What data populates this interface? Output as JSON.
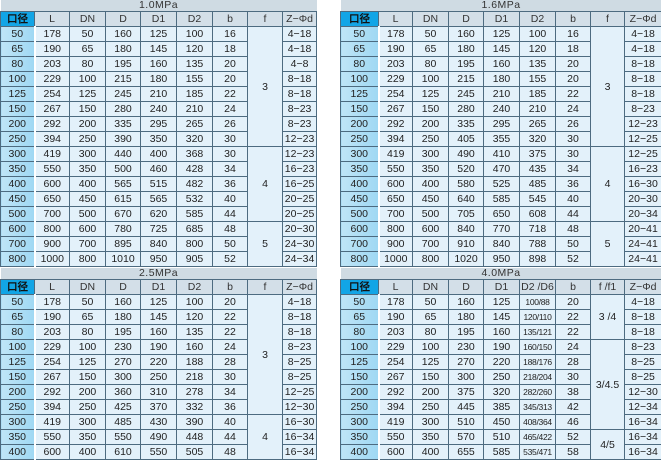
{
  "colors": {
    "header_first": "#12a5e6",
    "first_col": "#a9dcf3",
    "body": "#e3f1fa",
    "title_bar": "#cfdbe3",
    "border": "#4d6b80"
  },
  "tables": [
    {
      "title": "1.0MPa",
      "headers": [
        "口径",
        "L",
        "DN",
        "D",
        "D1",
        "D2",
        "b",
        "f",
        "Z−Φd"
      ],
      "rows": [
        [
          "50",
          "178",
          "50",
          "160",
          "125",
          "100",
          "16",
          "4−18"
        ],
        [
          "65",
          "190",
          "65",
          "180",
          "145",
          "120",
          "18",
          "4−18"
        ],
        [
          "80",
          "203",
          "80",
          "195",
          "160",
          "135",
          "20",
          "4−8"
        ],
        [
          "100",
          "229",
          "100",
          "215",
          "180",
          "155",
          "20",
          "8−18"
        ],
        [
          "125",
          "254",
          "125",
          "245",
          "210",
          "185",
          "22",
          "8−18"
        ],
        [
          "150",
          "267",
          "150",
          "280",
          "240",
          "210",
          "24",
          "8−23"
        ],
        [
          "200",
          "292",
          "200",
          "335",
          "295",
          "265",
          "26",
          "8−23"
        ],
        [
          "250",
          "394",
          "250",
          "390",
          "350",
          "320",
          "30",
          "12−23"
        ],
        [
          "300",
          "419",
          "300",
          "440",
          "400",
          "368",
          "30",
          "12−23"
        ],
        [
          "350",
          "550",
          "350",
          "500",
          "460",
          "428",
          "34",
          "16−23"
        ],
        [
          "400",
          "600",
          "400",
          "565",
          "515",
          "482",
          "36",
          "16−25"
        ],
        [
          "450",
          "650",
          "450",
          "615",
          "565",
          "532",
          "40",
          "20−25"
        ],
        [
          "500",
          "700",
          "500",
          "670",
          "620",
          "585",
          "44",
          "20−25"
        ],
        [
          "600",
          "800",
          "600",
          "780",
          "725",
          "685",
          "48",
          "20−30"
        ],
        [
          "700",
          "900",
          "700",
          "895",
          "840",
          "800",
          "50",
          "24−30"
        ],
        [
          "800",
          "1000",
          "800",
          "1010",
          "950",
          "905",
          "52",
          "24−34"
        ]
      ],
      "f_groups": [
        {
          "value": "3",
          "rows": 8
        },
        {
          "value": "4",
          "rows": 5
        },
        {
          "value": "5",
          "rows": 3
        }
      ]
    },
    {
      "title": "1.6MPa",
      "headers": [
        "口径",
        "L",
        "DN",
        "D",
        "D1",
        "D2",
        "b",
        "f",
        "Z−Φd"
      ],
      "rows": [
        [
          "50",
          "178",
          "50",
          "160",
          "125",
          "100",
          "16",
          "4−18"
        ],
        [
          "65",
          "190",
          "65",
          "180",
          "145",
          "120",
          "18",
          "4−18"
        ],
        [
          "80",
          "203",
          "80",
          "195",
          "160",
          "135",
          "20",
          "8−18"
        ],
        [
          "100",
          "229",
          "100",
          "215",
          "180",
          "155",
          "20",
          "8−18"
        ],
        [
          "125",
          "254",
          "125",
          "245",
          "210",
          "185",
          "22",
          "8−18"
        ],
        [
          "150",
          "267",
          "150",
          "280",
          "240",
          "210",
          "24",
          "8−23"
        ],
        [
          "200",
          "292",
          "200",
          "335",
          "295",
          "265",
          "26",
          "12−23"
        ],
        [
          "250",
          "394",
          "250",
          "405",
          "355",
          "320",
          "30",
          "12−25"
        ],
        [
          "300",
          "419",
          "300",
          "490",
          "410",
          "375",
          "30",
          "12−25"
        ],
        [
          "350",
          "550",
          "350",
          "520",
          "470",
          "435",
          "34",
          "16−23"
        ],
        [
          "400",
          "600",
          "400",
          "580",
          "525",
          "485",
          "36",
          "16−30"
        ],
        [
          "450",
          "650",
          "450",
          "640",
          "585",
          "545",
          "40",
          "20−30"
        ],
        [
          "500",
          "700",
          "500",
          "705",
          "650",
          "608",
          "44",
          "20−34"
        ],
        [
          "600",
          "800",
          "600",
          "840",
          "770",
          "718",
          "48",
          "20−41"
        ],
        [
          "700",
          "900",
          "700",
          "910",
          "840",
          "788",
          "50",
          "24−41"
        ],
        [
          "800",
          "1000",
          "800",
          "1020",
          "950",
          "898",
          "52",
          "24−41"
        ]
      ],
      "f_groups": [
        {
          "value": "3",
          "rows": 8
        },
        {
          "value": "4",
          "rows": 5
        },
        {
          "value": "5",
          "rows": 3
        }
      ]
    },
    {
      "title": "2.5MPa",
      "headers": [
        "口径",
        "L",
        "DN",
        "D",
        "D1",
        "D2",
        "b",
        "f",
        "Z−Φd"
      ],
      "rows": [
        [
          "50",
          "178",
          "50",
          "160",
          "125",
          "100",
          "20",
          "4−18"
        ],
        [
          "65",
          "190",
          "65",
          "180",
          "145",
          "120",
          "22",
          "8−18"
        ],
        [
          "80",
          "203",
          "80",
          "195",
          "160",
          "135",
          "22",
          "8−18"
        ],
        [
          "100",
          "229",
          "100",
          "230",
          "190",
          "160",
          "24",
          "8−23"
        ],
        [
          "125",
          "254",
          "125",
          "270",
          "220",
          "188",
          "28",
          "8−25"
        ],
        [
          "150",
          "267",
          "150",
          "300",
          "250",
          "218",
          "30",
          "8−25"
        ],
        [
          "200",
          "292",
          "200",
          "360",
          "310",
          "278",
          "34",
          "12−25"
        ],
        [
          "250",
          "394",
          "250",
          "425",
          "370",
          "332",
          "36",
          "12−30"
        ],
        [
          "300",
          "419",
          "300",
          "485",
          "430",
          "390",
          "40",
          "16−30"
        ],
        [
          "350",
          "550",
          "350",
          "550",
          "490",
          "448",
          "44",
          "16−34"
        ],
        [
          "400",
          "600",
          "400",
          "610",
          "550",
          "505",
          "48",
          "16−34"
        ]
      ],
      "f_groups": [
        {
          "value": "3",
          "rows": 8
        },
        {
          "value": "4",
          "rows": 3
        }
      ]
    },
    {
      "title": "4.0MPa",
      "headers": [
        "口径",
        "L",
        "DN",
        "D",
        "D1",
        "D2 /D6",
        "b",
        "f /f1",
        "Z−Φd"
      ],
      "rows": [
        [
          "50",
          "178",
          "50",
          "160",
          "125",
          "100/88",
          "20",
          "4−18"
        ],
        [
          "65",
          "190",
          "65",
          "180",
          "145",
          "120/110",
          "22",
          "8−18"
        ],
        [
          "80",
          "203",
          "80",
          "195",
          "160",
          "135/121",
          "22",
          "8−18"
        ],
        [
          "100",
          "229",
          "100",
          "230",
          "190",
          "160/150",
          "24",
          "8−23"
        ],
        [
          "125",
          "254",
          "125",
          "270",
          "220",
          "188/176",
          "28",
          "8−25"
        ],
        [
          "150",
          "267",
          "150",
          "300",
          "250",
          "218/204",
          "30",
          "8−25"
        ],
        [
          "200",
          "292",
          "200",
          "375",
          "320",
          "282/260",
          "38",
          "12−30"
        ],
        [
          "250",
          "394",
          "250",
          "445",
          "385",
          "345/313",
          "42",
          "12−34"
        ],
        [
          "300",
          "419",
          "300",
          "510",
          "450",
          "408/364",
          "46",
          "16−34"
        ],
        [
          "350",
          "550",
          "350",
          "570",
          "510",
          "465/422",
          "52",
          "16−34"
        ],
        [
          "400",
          "600",
          "400",
          "655",
          "585",
          "535/471",
          "58",
          "16−34"
        ]
      ],
      "f_groups": [
        {
          "value": "3 /4",
          "rows": 3
        },
        {
          "value": "3/4.5",
          "rows": 6
        },
        {
          "value": "4/5",
          "rows": 2
        }
      ]
    }
  ]
}
